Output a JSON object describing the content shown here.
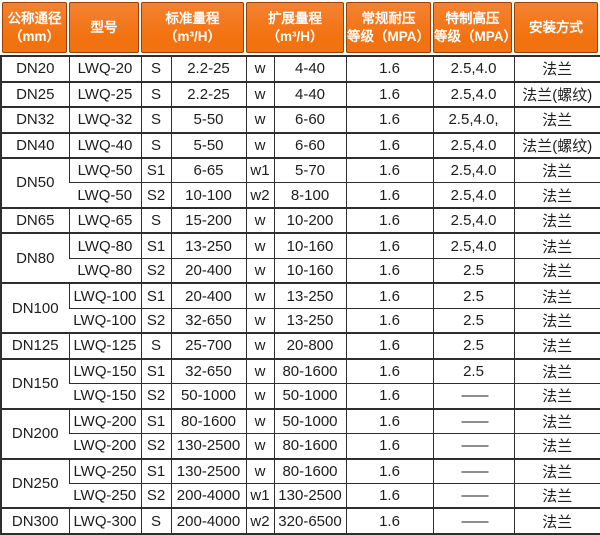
{
  "colors": {
    "accent": "#f2720f",
    "accent_light": "#f58232",
    "header_cell_border": "#9e3e00",
    "grid_border": "#2e2e2e",
    "header_text": "#ffffff",
    "body_text": "#1d1d1d",
    "background": "#ffffff"
  },
  "table": {
    "headers": [
      {
        "text": "公称通径\n（mm）"
      },
      {
        "text": "型号"
      },
      {
        "text": "标准量程\n（m³/H）"
      },
      {
        "text": "扩展量程\n（m³/H）"
      },
      {
        "text": "常规耐压\n等级（MPA）"
      },
      {
        "text": "特制高压\n等级（MPA）"
      },
      {
        "text": "安装方式"
      }
    ],
    "rows": [
      {
        "dn": "DN20",
        "dn_rowspan": 1,
        "model": "LWQ-20",
        "std_code": "S",
        "std_range": "2.2-25",
        "ext_code": "w",
        "ext_range": "4-40",
        "pressure": "1.6",
        "high_pressure": "2.5,4.0",
        "install": "法兰"
      },
      {
        "dn": "DN25",
        "dn_rowspan": 1,
        "model": "LWQ-25",
        "std_code": "S",
        "std_range": "2.2-25",
        "ext_code": "w",
        "ext_range": "4-40",
        "pressure": "1.6",
        "high_pressure": "2.5,4.0",
        "install": "法兰(螺纹)"
      },
      {
        "dn": "DN32",
        "dn_rowspan": 1,
        "model": "LWQ-32",
        "std_code": "S",
        "std_range": "5-50",
        "ext_code": "w",
        "ext_range": "6-60",
        "pressure": "1.6",
        "high_pressure": "2.5,4.0,",
        "install": "法兰"
      },
      {
        "dn": "DN40",
        "dn_rowspan": 1,
        "model": "LWQ-40",
        "std_code": "S",
        "std_range": "5-50",
        "ext_code": "w",
        "ext_range": "6-60",
        "pressure": "1.6",
        "high_pressure": "2.5,4.0",
        "install": "法兰(螺纹)"
      },
      {
        "dn": "DN50",
        "dn_rowspan": 2,
        "model": "LWQ-50",
        "std_code": "S1",
        "std_range": "6-65",
        "ext_code": "w1",
        "ext_range": "5-70",
        "pressure": "1.6",
        "high_pressure": "2.5,4.0",
        "install": "法兰"
      },
      {
        "model": "LWQ-50",
        "std_code": "S2",
        "std_range": "10-100",
        "ext_code": "w2",
        "ext_range": "8-100",
        "pressure": "1.6",
        "high_pressure": "2.5,4.0",
        "install": "法兰"
      },
      {
        "dn": "DN65",
        "dn_rowspan": 1,
        "model": "LWQ-65",
        "std_code": "S",
        "std_range": "15-200",
        "ext_code": "w",
        "ext_range": "10-200",
        "pressure": "1.6",
        "high_pressure": "2.5,4.0",
        "install": "法兰"
      },
      {
        "dn": "DN80",
        "dn_rowspan": 2,
        "model": "LWQ-80",
        "std_code": "S1",
        "std_range": "13-250",
        "ext_code": "w",
        "ext_range": "10-160",
        "pressure": "1.6",
        "high_pressure": "2.5,4.0",
        "install": "法兰"
      },
      {
        "model": "LWQ-80",
        "std_code": "S2",
        "std_range": "20-400",
        "ext_code": "w",
        "ext_range": "10-160",
        "pressure": "1.6",
        "high_pressure": "2.5",
        "install": "法兰"
      },
      {
        "dn": "DN100",
        "dn_rowspan": 2,
        "model": "LWQ-100",
        "std_code": "S1",
        "std_range": "20-400",
        "ext_code": "w",
        "ext_range": "13-250",
        "pressure": "1.6",
        "high_pressure": "2.5",
        "install": "法兰"
      },
      {
        "model": "LWQ-100",
        "std_code": "S2",
        "std_range": "32-650",
        "ext_code": "w",
        "ext_range": "13-250",
        "pressure": "1.6",
        "high_pressure": "2.5",
        "install": "法兰"
      },
      {
        "dn": "DN125",
        "dn_rowspan": 1,
        "model": "LWQ-125",
        "std_code": "S",
        "std_range": "25-700",
        "ext_code": "w",
        "ext_range": "20-800",
        "pressure": "1.6",
        "high_pressure": "2.5",
        "install": "法兰"
      },
      {
        "dn": "DN150",
        "dn_rowspan": 2,
        "model": "LWQ-150",
        "std_code": "S1",
        "std_range": "32-650",
        "ext_code": "w",
        "ext_range": "80-1600",
        "pressure": "1.6",
        "high_pressure": "2.5",
        "install": "法兰"
      },
      {
        "model": "LWQ-150",
        "std_code": "S2",
        "std_range": "50-1000",
        "ext_code": "w",
        "ext_range": "50-1000",
        "pressure": "1.6",
        "high_pressure": "——",
        "install": "法兰"
      },
      {
        "dn": "DN200",
        "dn_rowspan": 2,
        "model": "LWQ-200",
        "std_code": "S1",
        "std_range": "80-1600",
        "ext_code": "w",
        "ext_range": "50-1000",
        "pressure": "1.6",
        "high_pressure": "——",
        "install": "法兰"
      },
      {
        "model": "LWQ-200",
        "std_code": "S2",
        "std_range": "130-2500",
        "ext_code": "w",
        "ext_range": "80-1600",
        "pressure": "1.6",
        "high_pressure": "——",
        "install": "法兰"
      },
      {
        "dn": "DN250",
        "dn_rowspan": 2,
        "model": "LWQ-250",
        "std_code": "S1",
        "std_range": "130-2500",
        "ext_code": "w",
        "ext_range": "80-1600",
        "pressure": "1.6",
        "high_pressure": "——",
        "install": "法兰"
      },
      {
        "model": "LWQ-250",
        "std_code": "S2",
        "std_range": "200-4000",
        "ext_code": "w1",
        "ext_range": "130-2500",
        "pressure": "1.6",
        "high_pressure": "——",
        "install": "法兰"
      },
      {
        "dn": "DN300",
        "dn_rowspan": 1,
        "model": "LWQ-300",
        "std_code": "S",
        "std_range": "200-4000",
        "ext_code": "w2",
        "ext_range": "320-6500",
        "pressure": "1.6",
        "high_pressure": "——",
        "install": "法兰"
      }
    ]
  }
}
